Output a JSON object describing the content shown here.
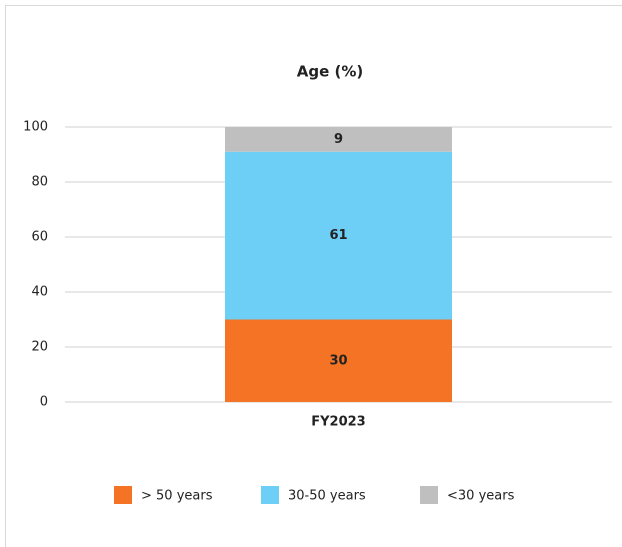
{
  "chart_data": {
    "type": "stacked_bar",
    "title": "Age (%)",
    "categories": [
      "FY2023"
    ],
    "series": [
      {
        "name": "> 50 years",
        "color": "#f47324",
        "values": [
          30
        ]
      },
      {
        "name": "30-50 years",
        "color": "#6dcff6",
        "values": [
          61
        ]
      },
      {
        "name": "<30 years",
        "color": "#bfbfbf",
        "values": [
          9
        ]
      }
    ],
    "ylim": [
      0,
      100
    ],
    "yticks": [
      0,
      20,
      40,
      60,
      80,
      100
    ],
    "grid": true,
    "legend": "bottom"
  }
}
